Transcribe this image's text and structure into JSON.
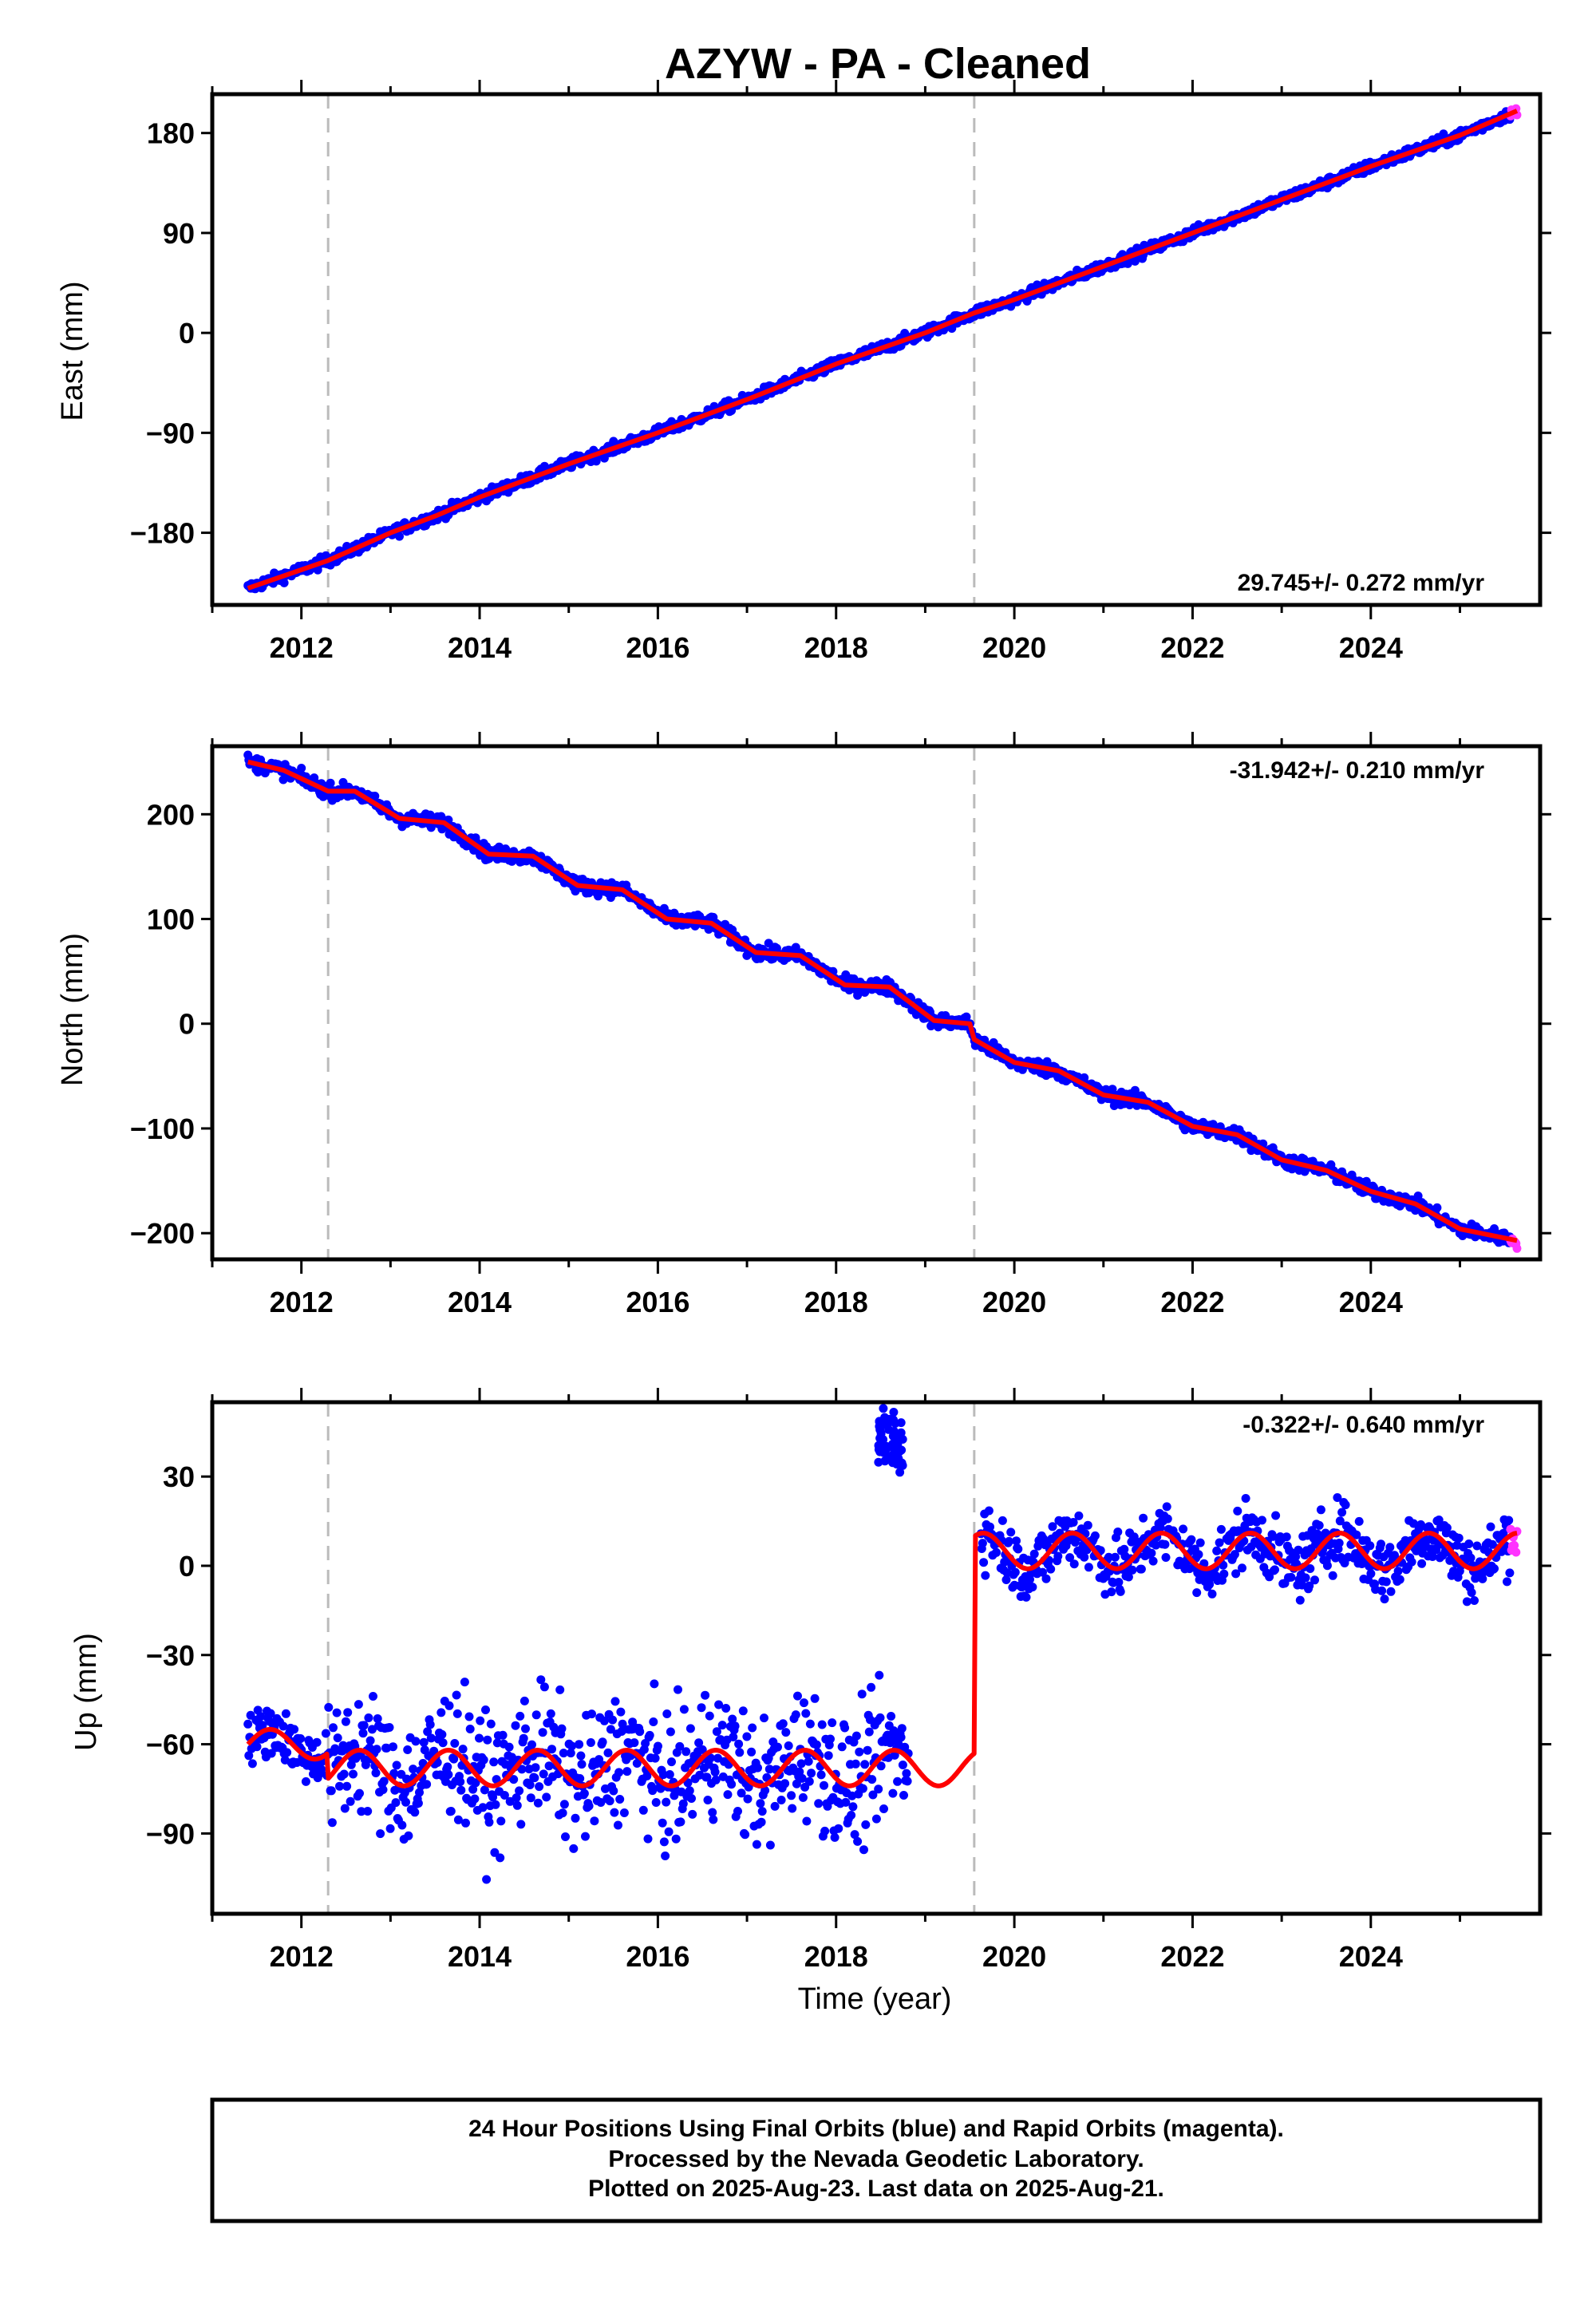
{
  "chart_data": {
    "title": "AZYW  - PA - Cleaned",
    "type": "scatter",
    "x_range": [
      2011.0,
      2025.9
    ],
    "x_ticks": [
      2012,
      2014,
      2016,
      2018,
      2020,
      2022,
      2024
    ],
    "xlabel": "Time (year)",
    "equipment_changes": [
      2012.3,
      2019.55
    ],
    "last_data_year": 2025.64,
    "colors": {
      "final": "#0000ff",
      "rapid": "#ff33ff",
      "model": "#ff0000",
      "event_line": "#bbbbbb"
    },
    "legend_lines": [
      "24 Hour Positions Using Final Orbits (blue) and Rapid Orbits (magenta).",
      "Processed by the Nevada Geodetic Laboratory.",
      "Plotted on 2025-Aug-23. Last data on 2025-Aug-21."
    ],
    "panels": [
      {
        "id": "east",
        "ylabel": "East (mm)",
        "ylim": [
          -245,
          215
        ],
        "yticks": [
          180,
          90,
          0,
          -90,
          -180
        ],
        "ytick_labels": [
          "180",
          "90",
          "0",
          "−90",
          "−180"
        ],
        "rate_text": "29.745+/- 0.272 mm/yr",
        "rate_position": "bottom-right",
        "rate_mm_per_yr": 29.745,
        "model": [
          [
            2011.4,
            -230
          ],
          [
            2012.3,
            -205
          ],
          [
            2013.0,
            -180
          ],
          [
            2013.5,
            -165
          ],
          [
            2014.0,
            -148
          ],
          [
            2015.0,
            -118
          ],
          [
            2016.0,
            -90
          ],
          [
            2017.0,
            -60
          ],
          [
            2018.0,
            -28
          ],
          [
            2019.0,
            0
          ],
          [
            2019.55,
            18
          ],
          [
            2020.0,
            30
          ],
          [
            2021.0,
            60
          ],
          [
            2022.0,
            90
          ],
          [
            2023.0,
            120
          ],
          [
            2024.0,
            150
          ],
          [
            2025.0,
            178
          ],
          [
            2025.64,
            200
          ]
        ]
      },
      {
        "id": "north",
        "ylabel": "North (mm)",
        "ylim": [
          -225,
          265
        ],
        "yticks": [
          200,
          100,
          0,
          -100,
          -200
        ],
        "ytick_labels": [
          "200",
          "100",
          "0",
          "−100",
          "−200"
        ],
        "rate_text": "-31.942+/- 0.210 mm/yr",
        "rate_position": "top-right",
        "rate_mm_per_yr": -31.942,
        "model": [
          [
            2011.4,
            250
          ],
          [
            2011.8,
            242
          ],
          [
            2012.3,
            222
          ],
          [
            2012.6,
            222
          ],
          [
            2013.1,
            196
          ],
          [
            2013.6,
            192
          ],
          [
            2014.1,
            162
          ],
          [
            2014.6,
            160
          ],
          [
            2015.1,
            132
          ],
          [
            2015.6,
            128
          ],
          [
            2016.1,
            100
          ],
          [
            2016.6,
            96
          ],
          [
            2017.1,
            68
          ],
          [
            2017.6,
            65
          ],
          [
            2018.1,
            37
          ],
          [
            2018.6,
            35
          ],
          [
            2019.1,
            3
          ],
          [
            2019.5,
            0
          ],
          [
            2019.55,
            -15
          ],
          [
            2020.0,
            -37
          ],
          [
            2020.5,
            -45
          ],
          [
            2021.0,
            -68
          ],
          [
            2021.5,
            -75
          ],
          [
            2022.0,
            -98
          ],
          [
            2022.5,
            -106
          ],
          [
            2023.0,
            -130
          ],
          [
            2023.5,
            -140
          ],
          [
            2024.0,
            -160
          ],
          [
            2024.5,
            -172
          ],
          [
            2025.0,
            -196
          ],
          [
            2025.64,
            -207
          ]
        ]
      },
      {
        "id": "up",
        "ylabel": "Up (mm)",
        "ylim": [
          -117,
          55
        ],
        "yticks": [
          30,
          0,
          -30,
          -60,
          -90
        ],
        "ytick_labels": [
          "30",
          "0",
          "−30",
          "−60",
          "−90"
        ],
        "rate_text": "-0.322+/- 0.640 mm/yr",
        "rate_position": "top-right",
        "rate_mm_per_yr": -0.322,
        "segments": [
          {
            "x_start": 2011.4,
            "x_end": 2012.3,
            "level": -60,
            "seasonal_amplitude": 5,
            "scatter": 5
          },
          {
            "x_start": 2012.3,
            "x_end": 2019.55,
            "level": -68,
            "seasonal_amplitude": 6,
            "scatter": 12
          },
          {
            "x_start": 2019.55,
            "x_end": 2025.64,
            "level": 5,
            "seasonal_amplitude": 6,
            "scatter": 6
          }
        ],
        "outlier_cluster": {
          "x_start": 2018.45,
          "x_end": 2018.75,
          "level": 42,
          "scatter": 6
        }
      }
    ]
  }
}
